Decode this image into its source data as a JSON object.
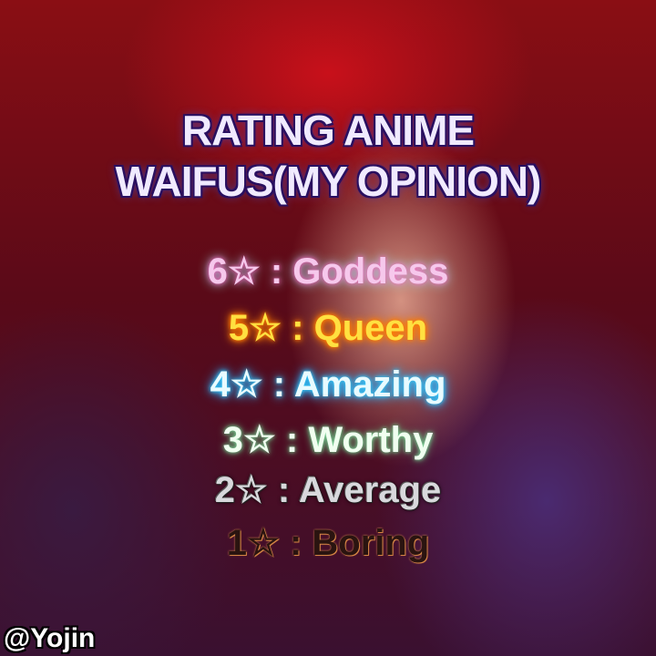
{
  "title": {
    "line1": "RATING ANIME",
    "line2": "WAIFUS(MY OPINION)"
  },
  "ratings": [
    {
      "stars": "6☆",
      "sep": " : ",
      "label": "Goddess"
    },
    {
      "stars": "5☆",
      "sep": " : ",
      "label": "Queen"
    },
    {
      "stars": "4☆",
      "sep": " : ",
      "label": "Amazing"
    },
    {
      "stars": "3☆",
      "sep": " : ",
      "label": "Worthy"
    },
    {
      "stars": "2☆",
      "sep": " : ",
      "label": "Average"
    },
    {
      "stars": "1☆",
      "sep": " : ",
      "label": "Boring"
    }
  ],
  "watermark": "@Yojin",
  "icons": {
    "rating": "star-outline-icon"
  }
}
